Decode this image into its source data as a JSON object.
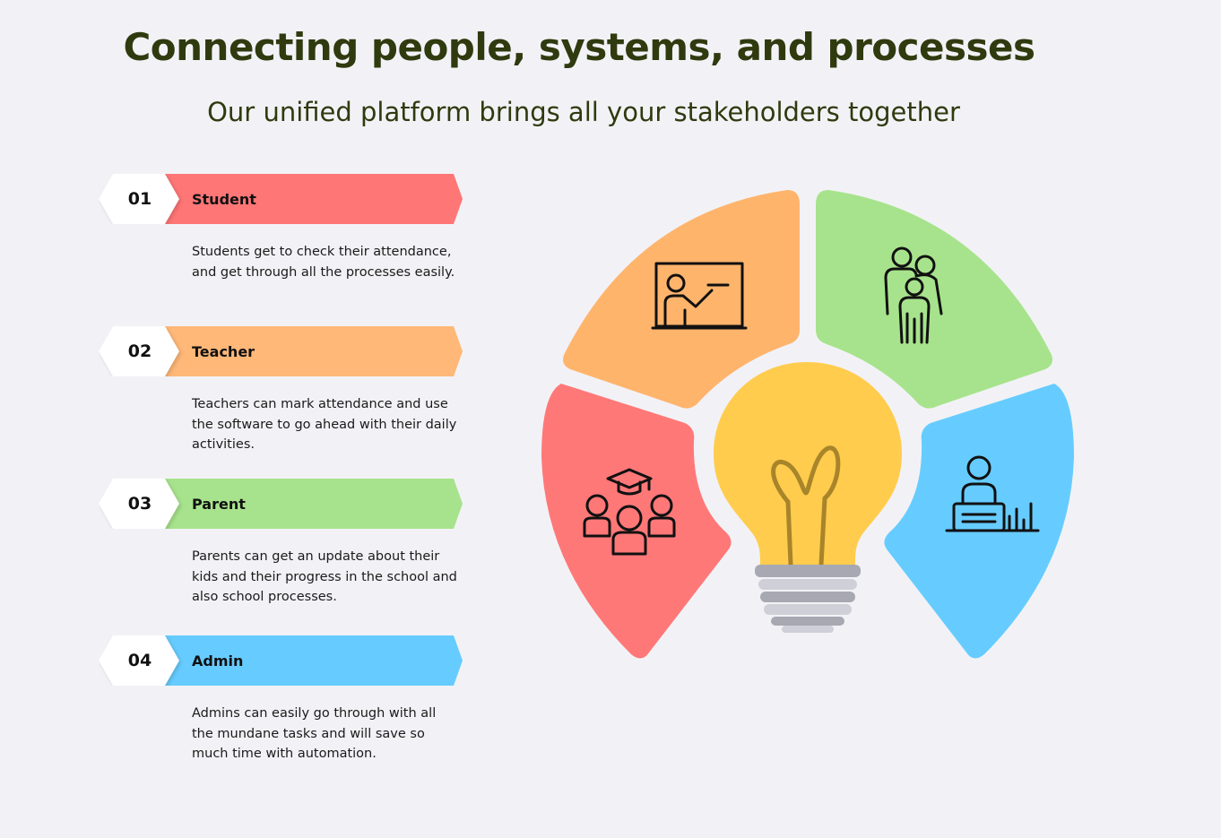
{
  "header": {
    "title": "Connecting people, systems, and processes",
    "subtitle": "Our unified platform brings all your stakeholders together"
  },
  "steps": [
    {
      "number": "01",
      "label": "Student",
      "color": "#ff7676",
      "description": "Students get to check their attendance, and get through all the processes easily."
    },
    {
      "number": "02",
      "label": "Teacher",
      "color": "#ffb878",
      "description": "Teachers can mark attendance and use the software to go ahead with their daily activities."
    },
    {
      "number": "03",
      "label": "Parent",
      "color": "#a7e38c",
      "description": "Parents can get an update about their kids and their progress in the school and also school processes."
    },
    {
      "number": "04",
      "label": "Admin",
      "color": "#66ccff",
      "description": "Admins can easily go through with all the mundane tasks and will save so much time with automation."
    }
  ],
  "diagram": {
    "segments": [
      {
        "role": "Teacher",
        "icon": "teacher-board-icon",
        "color": "#ffb46c"
      },
      {
        "role": "Parent",
        "icon": "family-icon",
        "color": "#a7e38c"
      },
      {
        "role": "Student",
        "icon": "students-graduation-icon",
        "color": "#ff7878"
      },
      {
        "role": "Admin",
        "icon": "admin-desk-chart-icon",
        "color": "#66ccff"
      }
    ],
    "center_icon": "light-bulb-icon",
    "bulb_color": "#ffcc4d",
    "base_colors": [
      "#a8a8b2",
      "#cfcfd7"
    ]
  }
}
